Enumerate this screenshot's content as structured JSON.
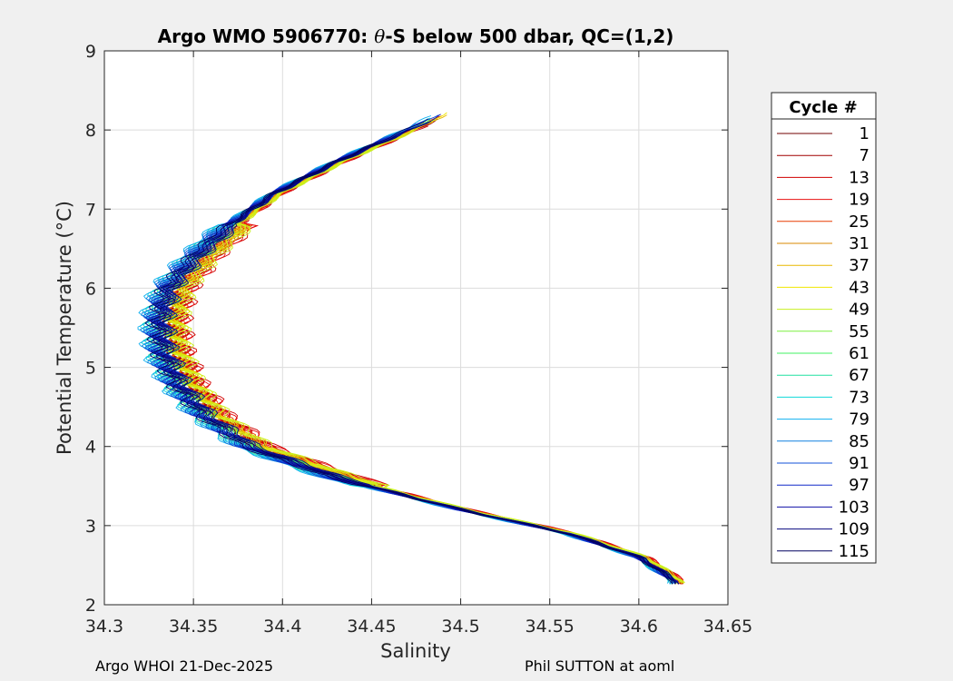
{
  "chart_data": {
    "type": "line",
    "title": "Argo WMO 5906770: θ-S below 500 dbar,  QC=(1,2)",
    "title_parts": [
      "Argo WMO 5906770: ",
      "θ",
      "-S below 500 dbar,  QC=(1,2)"
    ],
    "xlabel": "Salinity",
    "ylabel": "Potential Temperature (°C)",
    "xlim": [
      34.3,
      34.65
    ],
    "ylim": [
      2,
      9
    ],
    "xticks": [
      34.3,
      34.35,
      34.4,
      34.45,
      34.5,
      34.55,
      34.6,
      34.65
    ],
    "xtick_labels": [
      "34.3",
      "34.35",
      "34.4",
      "34.45",
      "34.5",
      "34.55",
      "34.6",
      "34.65"
    ],
    "yticks": [
      2,
      3,
      4,
      5,
      6,
      7,
      8,
      9
    ],
    "ytick_labels": [
      "2",
      "3",
      "4",
      "5",
      "6",
      "7",
      "8",
      "9"
    ],
    "grid": true,
    "legend_title": "Cycle #",
    "legend_position": "outside-right",
    "profile_shape": {
      "note": "mean theta-S curve, each cycle offset slightly",
      "theta": [
        8.22,
        8.0,
        7.6,
        7.2,
        6.8,
        6.4,
        6.0,
        5.6,
        5.2,
        4.8,
        4.4,
        4.0,
        3.6,
        3.2,
        2.9,
        2.6,
        2.3
      ],
      "salinity": [
        34.49,
        34.47,
        34.43,
        34.395,
        34.37,
        34.35,
        34.335,
        34.33,
        34.332,
        34.34,
        34.355,
        34.38,
        34.43,
        34.5,
        34.56,
        34.6,
        34.62
      ]
    },
    "series": [
      {
        "name": "1",
        "color": "#700000",
        "offset": 0.004
      },
      {
        "name": "7",
        "color": "#a00000",
        "offset": 0.006
      },
      {
        "name": "13",
        "color": "#d00000",
        "offset": 0.008
      },
      {
        "name": "19",
        "color": "#e81010",
        "offset": 0.007
      },
      {
        "name": "25",
        "color": "#e83c00",
        "offset": 0.005
      },
      {
        "name": "31",
        "color": "#d98a00",
        "offset": 0.004
      },
      {
        "name": "37",
        "color": "#e8b800",
        "offset": 0.005
      },
      {
        "name": "43",
        "color": "#f0e600",
        "offset": 0.006
      },
      {
        "name": "49",
        "color": "#c8f020",
        "offset": 0.007
      },
      {
        "name": "55",
        "color": "#7cf040",
        "offset": 0.002
      },
      {
        "name": "61",
        "color": "#40f060",
        "offset": 0.001
      },
      {
        "name": "67",
        "color": "#20e0a0",
        "offset": -0.001
      },
      {
        "name": "73",
        "color": "#10d8d8",
        "offset": -0.002
      },
      {
        "name": "79",
        "color": "#10b0f0",
        "offset": -0.003
      },
      {
        "name": "85",
        "color": "#1080e0",
        "offset": -0.002
      },
      {
        "name": "91",
        "color": "#1050d8",
        "offset": -0.001
      },
      {
        "name": "97",
        "color": "#1028c8",
        "offset": 0.0
      },
      {
        "name": "103",
        "color": "#1010a8",
        "offset": 0.001
      },
      {
        "name": "109",
        "color": "#080880",
        "offset": 0.002
      },
      {
        "name": "115",
        "color": "#000060",
        "offset": 0.0
      }
    ]
  },
  "footer": {
    "left": "Argo WHOI 21-Dec-2025",
    "right": "Phil SUTTON at aoml"
  }
}
